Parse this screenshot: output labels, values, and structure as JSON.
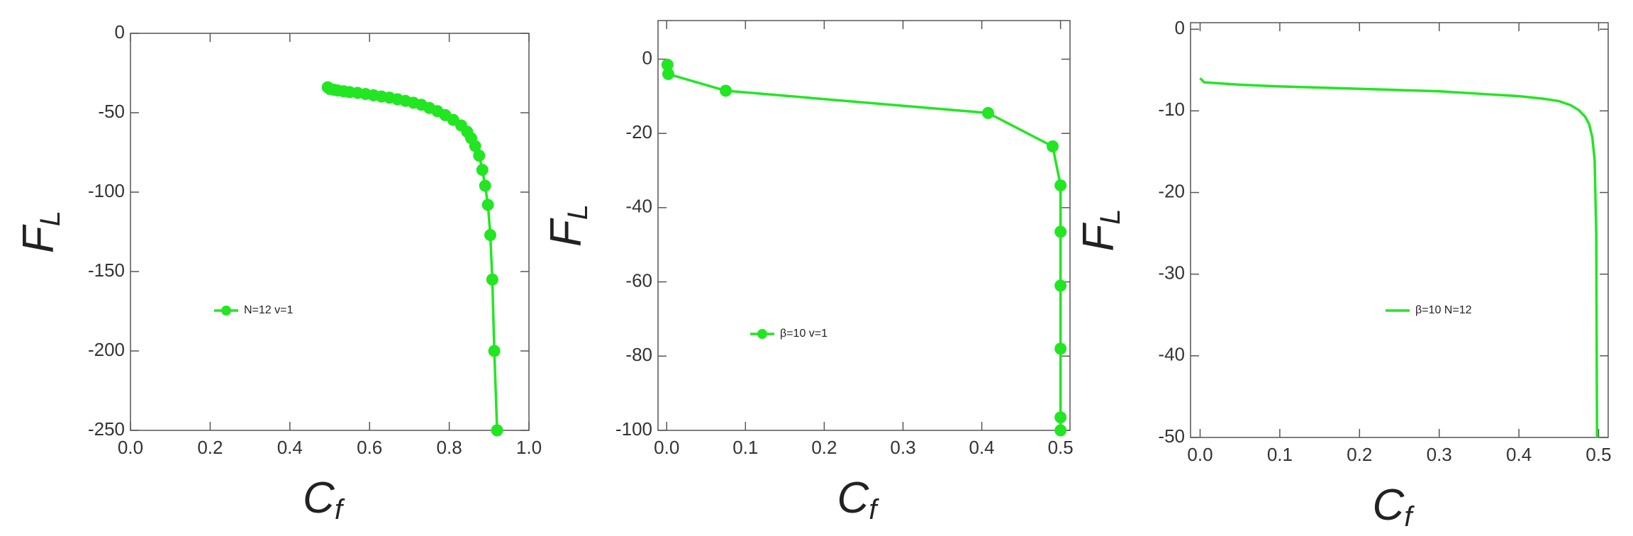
{
  "chart_data": [
    {
      "type": "line",
      "markers": true,
      "color": "#22e622",
      "xlabel": "C",
      "xlabel_sub": "f",
      "ylabel": "F",
      "ylabel_sub": "L",
      "series": [
        {
          "name": "N=12  v=1",
          "color": "#22e622",
          "x": [
            0.495,
            0.5,
            0.51,
            0.52,
            0.535,
            0.55,
            0.57,
            0.59,
            0.61,
            0.63,
            0.65,
            0.67,
            0.69,
            0.71,
            0.73,
            0.75,
            0.77,
            0.79,
            0.81,
            0.83,
            0.845,
            0.855,
            0.865,
            0.875,
            0.883,
            0.89,
            0.897,
            0.903,
            0.908,
            0.913,
            0.92
          ],
          "values": [
            -34,
            -35,
            -35.5,
            -36,
            -36.5,
            -37,
            -37.5,
            -38.2,
            -39,
            -39.8,
            -40.5,
            -41.5,
            -42.5,
            -43.7,
            -45,
            -47,
            -49,
            -51.5,
            -54.5,
            -58,
            -62,
            -66,
            -71,
            -77,
            -86,
            -96,
            -108,
            -127,
            -155,
            -200,
            -250
          ]
        }
      ],
      "xlim": [
        0,
        1
      ],
      "xticks": [
        {
          "value": 0,
          "label": "0.0"
        },
        0.2,
        0.4,
        0.6,
        0.8,
        {
          "value": 1,
          "label": "1.0"
        }
      ],
      "ylim": [
        -250,
        0
      ],
      "yticks": [
        0,
        -50,
        -100,
        -150,
        -200,
        -250
      ]
    },
    {
      "type": "line",
      "markers": true,
      "color": "#22e622",
      "xlabel": "C",
      "xlabel_sub": "f",
      "ylabel": "F",
      "ylabel_sub": "L",
      "series": [
        {
          "name": "β=10  v=1",
          "color": "#22e622",
          "x": [
            0.001,
            0.002,
            0.075,
            0.408,
            0.49,
            0.5,
            0.5,
            0.5,
            0.5,
            0.5,
            0.5
          ],
          "values": [
            -1.5,
            -4,
            -8.5,
            -14.5,
            -23.5,
            -34,
            -46.5,
            -61,
            -78,
            -96.5,
            -100
          ]
        }
      ],
      "xlim": [
        -0.011,
        0.512
      ],
      "xticks": [
        {
          "value": 0,
          "label": "0.0"
        },
        0.1,
        0.2,
        0.3,
        0.4,
        0.5
      ],
      "ylim": [
        -100,
        10.4
      ],
      "yticks": [
        0,
        -20,
        -40,
        -60,
        -80,
        -100
      ]
    },
    {
      "type": "line",
      "markers": false,
      "color": "#22e622",
      "xlabel": "C",
      "xlabel_sub": "f",
      "ylabel": "F",
      "ylabel_sub": "L",
      "series": [
        {
          "name": "β=10  N=12",
          "color": "#22e622",
          "x": [
            0,
            0.005,
            0.05,
            0.1,
            0.2,
            0.3,
            0.35,
            0.4,
            0.43,
            0.45,
            0.465,
            0.475,
            0.483,
            0.488,
            0.492,
            0.495,
            0.497,
            0.498
          ],
          "values": [
            -6,
            -6.5,
            -6.8,
            -7,
            -7.3,
            -7.6,
            -7.9,
            -8.2,
            -8.5,
            -8.8,
            -9.3,
            -9.9,
            -10.7,
            -11.6,
            -13.2,
            -16,
            -25,
            -50
          ]
        }
      ],
      "xlim": [
        -0.012,
        0.512
      ],
      "xticks": [
        {
          "value": 0,
          "label": "0.0"
        },
        0.1,
        0.2,
        0.3,
        0.4,
        0.5
      ],
      "ylim": [
        -50,
        0.8
      ],
      "yticks": [
        0,
        -10,
        -20,
        -30,
        -40,
        -50
      ]
    }
  ]
}
